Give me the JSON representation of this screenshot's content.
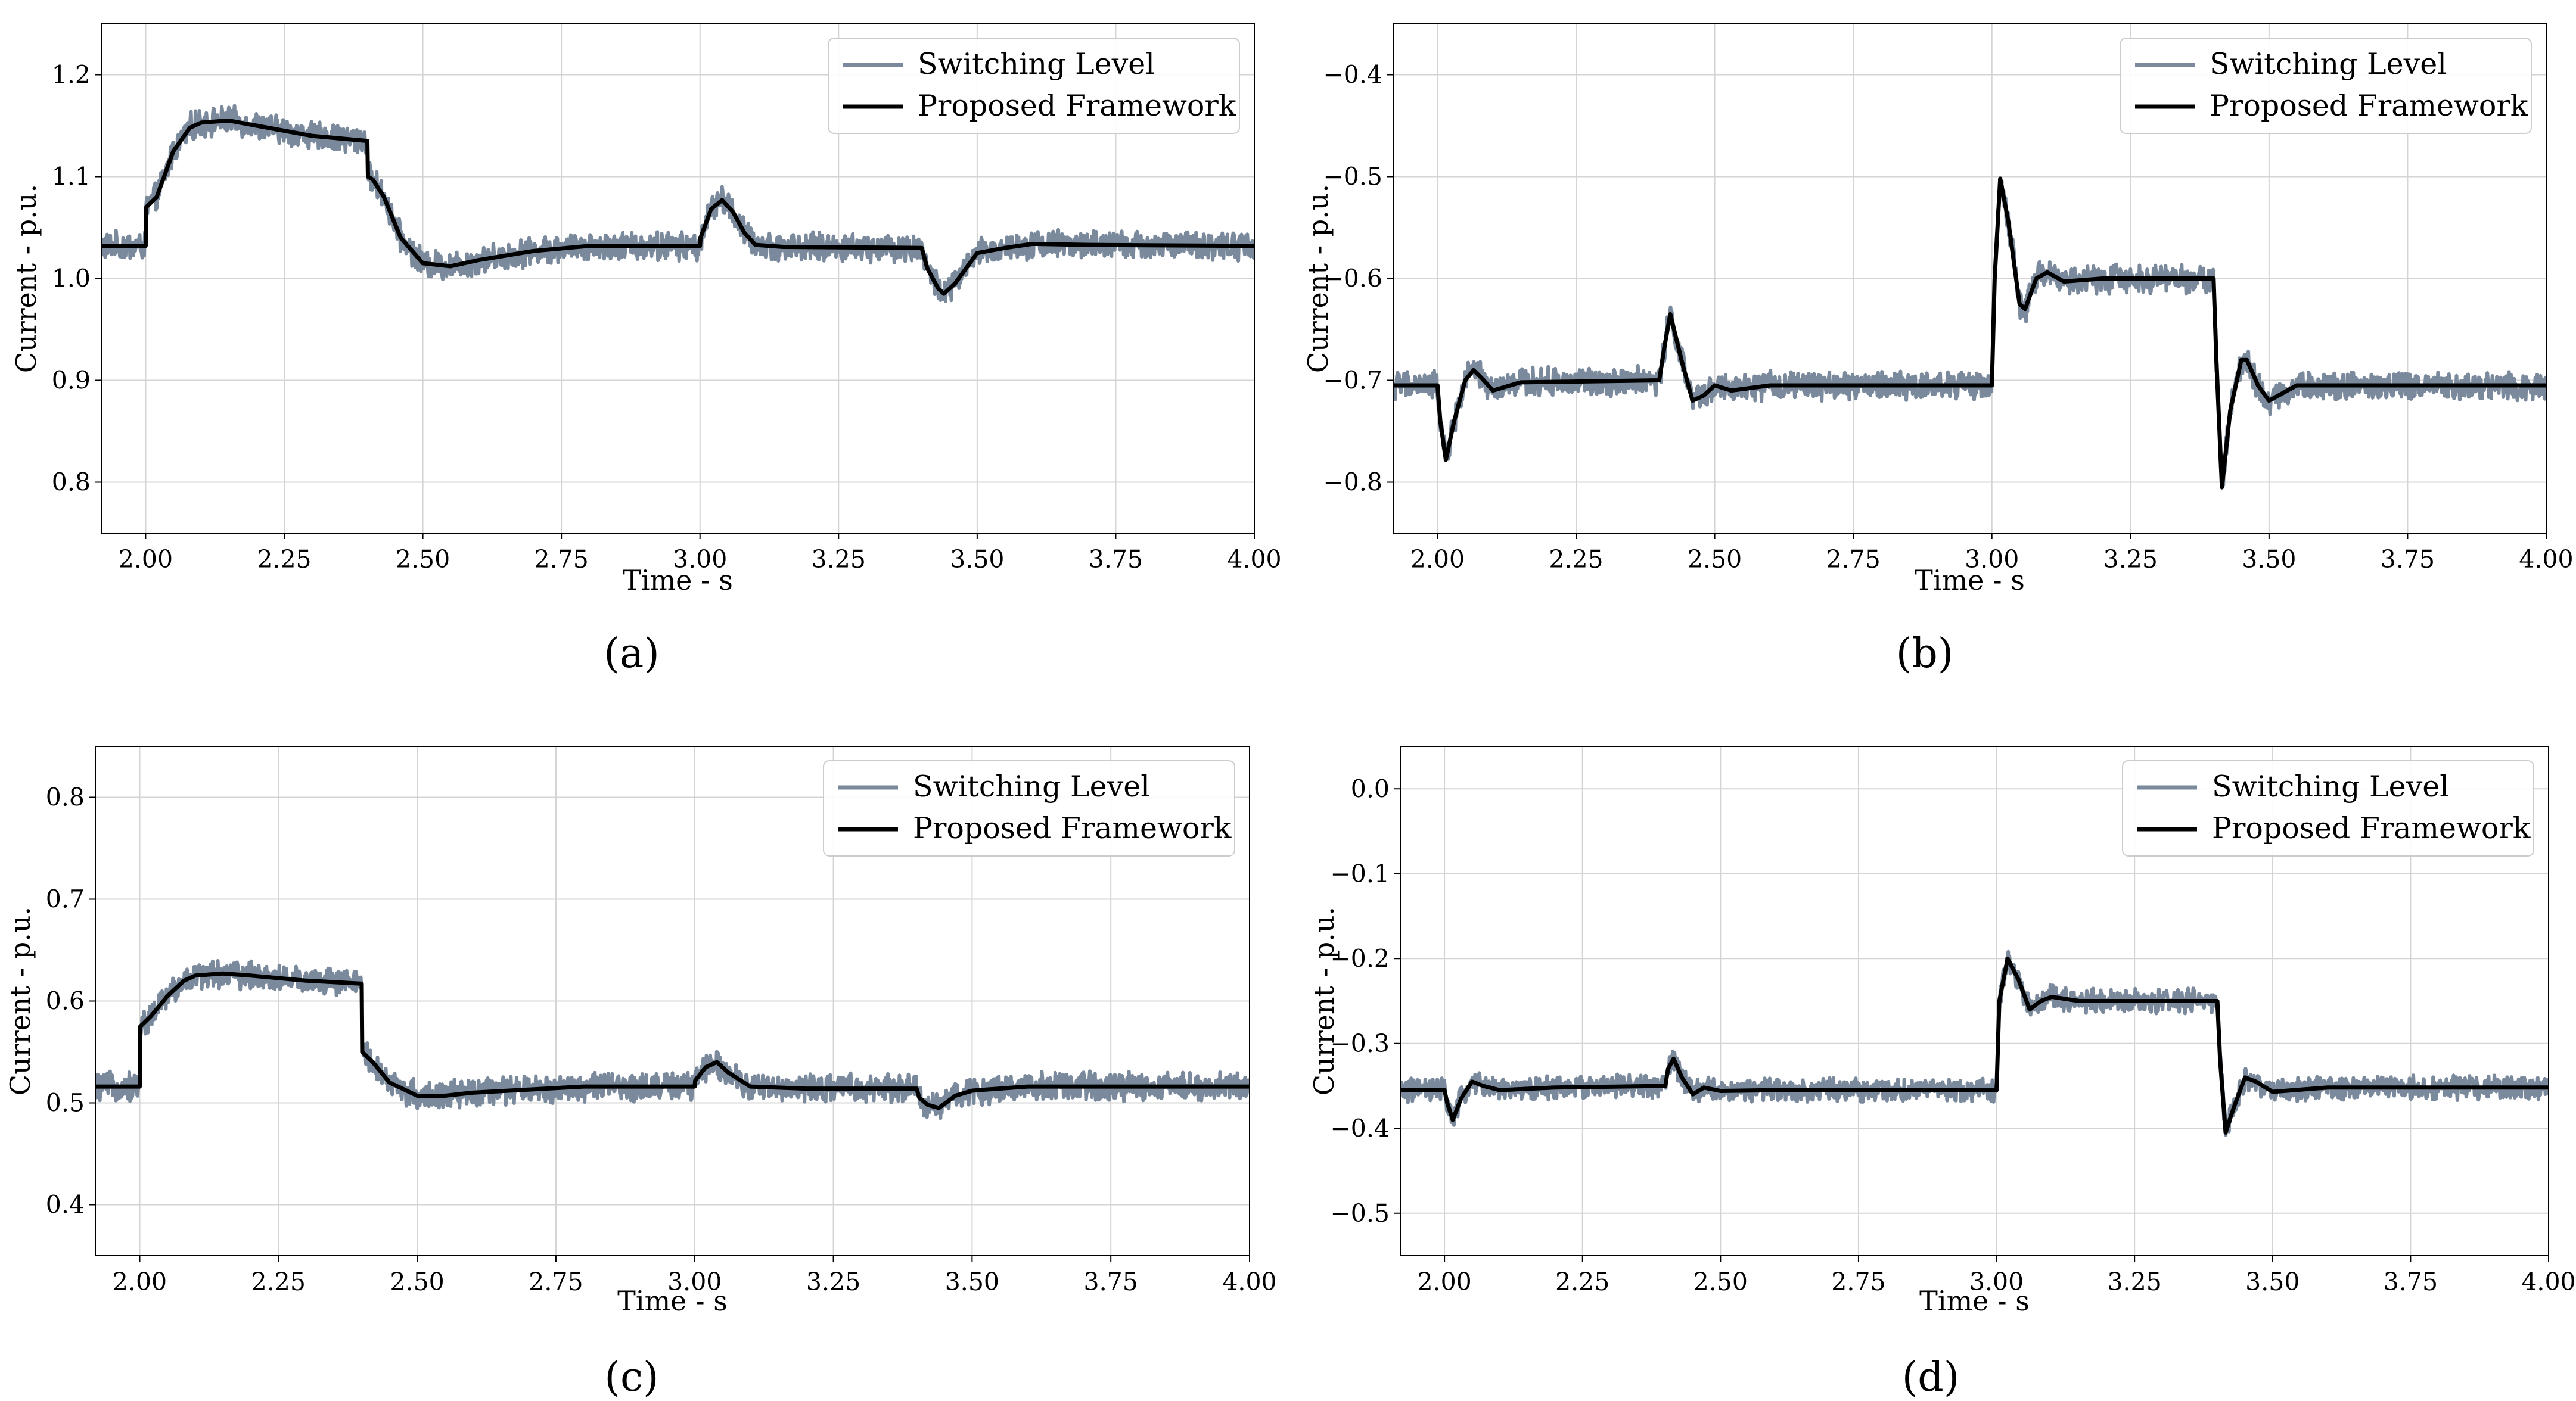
{
  "figure": {
    "captions": [
      "(a)",
      "(b)",
      "(c)",
      "(d)"
    ]
  },
  "colors": {
    "switching": "#7a8a9c",
    "framework": "#000000",
    "grid": "#d4d4d4",
    "frame": "#000000"
  },
  "chart_data": [
    {
      "type": "line",
      "panel": "a",
      "caption": "(a)",
      "xlabel": "Time - s",
      "ylabel": "Current - p.u.",
      "xlim": [
        1.92,
        4.0
      ],
      "ylim": [
        0.75,
        1.25
      ],
      "xticks": [
        2.0,
        2.25,
        2.5,
        2.75,
        3.0,
        3.25,
        3.5,
        3.75,
        4.0
      ],
      "xtick_labels": [
        "2.00",
        "2.25",
        "2.50",
        "2.75",
        "3.00",
        "3.25",
        "3.50",
        "3.75",
        "4.00"
      ],
      "yticks": [
        0.8,
        0.9,
        1.0,
        1.1,
        1.2
      ],
      "ytick_labels": [
        "0.8",
        "0.9",
        "1.0",
        "1.1",
        "1.2"
      ],
      "grid": true,
      "legend_position": "top-right",
      "noise_amplitude": 0.012,
      "series": [
        {
          "name": "Switching Level",
          "role": "switching"
        },
        {
          "name": "Proposed Framework",
          "role": "framework",
          "x": [
            1.92,
            2.0,
            2.001,
            2.02,
            2.05,
            2.08,
            2.1,
            2.15,
            2.2,
            2.3,
            2.4,
            2.401,
            2.41,
            2.43,
            2.46,
            2.5,
            2.55,
            2.6,
            2.7,
            2.8,
            3.0,
            3.001,
            3.02,
            3.04,
            3.06,
            3.08,
            3.1,
            3.15,
            3.4,
            3.41,
            3.43,
            3.44,
            3.46,
            3.5,
            3.55,
            3.6,
            3.7,
            4.0
          ],
          "y": [
            1.032,
            1.032,
            1.07,
            1.08,
            1.125,
            1.148,
            1.153,
            1.155,
            1.15,
            1.14,
            1.135,
            1.1,
            1.097,
            1.08,
            1.04,
            1.015,
            1.012,
            1.018,
            1.027,
            1.032,
            1.032,
            1.04,
            1.068,
            1.077,
            1.065,
            1.045,
            1.033,
            1.031,
            1.03,
            1.01,
            0.99,
            0.985,
            0.995,
            1.025,
            1.03,
            1.034,
            1.033,
            1.032
          ]
        }
      ]
    },
    {
      "type": "line",
      "panel": "b",
      "caption": "(b)",
      "xlabel": "Time - s",
      "ylabel": "Current - p.u.",
      "xlim": [
        1.92,
        4.0
      ],
      "ylim": [
        -0.85,
        -0.35
      ],
      "xticks": [
        2.0,
        2.25,
        2.5,
        2.75,
        3.0,
        3.25,
        3.5,
        3.75,
        4.0
      ],
      "xtick_labels": [
        "2.00",
        "2.25",
        "2.50",
        "2.75",
        "3.00",
        "3.25",
        "3.50",
        "3.75",
        "4.00"
      ],
      "yticks": [
        -0.8,
        -0.7,
        -0.6,
        -0.5,
        -0.4
      ],
      "ytick_labels": [
        "−0.8",
        "−0.7",
        "−0.6",
        "−0.5",
        "−0.4"
      ],
      "grid": true,
      "legend_position": "top-right",
      "noise_amplitude": 0.012,
      "series": [
        {
          "name": "Switching Level",
          "role": "switching"
        },
        {
          "name": "Proposed Framework",
          "role": "framework",
          "x": [
            1.92,
            2.0,
            2.005,
            2.015,
            2.03,
            2.05,
            2.065,
            2.08,
            2.1,
            2.15,
            2.4,
            2.41,
            2.42,
            2.44,
            2.46,
            2.48,
            2.5,
            2.53,
            2.6,
            3.0,
            3.005,
            3.015,
            3.03,
            3.05,
            3.06,
            3.08,
            3.1,
            3.13,
            3.2,
            3.4,
            3.405,
            3.415,
            3.43,
            3.45,
            3.46,
            3.48,
            3.5,
            3.55,
            4.0
          ],
          "y": [
            -0.705,
            -0.705,
            -0.74,
            -0.778,
            -0.74,
            -0.7,
            -0.69,
            -0.698,
            -0.71,
            -0.702,
            -0.7,
            -0.665,
            -0.635,
            -0.68,
            -0.72,
            -0.715,
            -0.705,
            -0.71,
            -0.705,
            -0.705,
            -0.6,
            -0.502,
            -0.545,
            -0.625,
            -0.63,
            -0.6,
            -0.594,
            -0.603,
            -0.6,
            -0.6,
            -0.68,
            -0.805,
            -0.73,
            -0.68,
            -0.68,
            -0.705,
            -0.72,
            -0.705,
            -0.705
          ]
        }
      ]
    },
    {
      "type": "line",
      "panel": "c",
      "caption": "(c)",
      "xlabel": "Time - s",
      "ylabel": "Current - p.u.",
      "xlim": [
        1.92,
        4.0
      ],
      "ylim": [
        0.35,
        0.85
      ],
      "xticks": [
        2.0,
        2.25,
        2.5,
        2.75,
        3.0,
        3.25,
        3.5,
        3.75,
        4.0
      ],
      "xtick_labels": [
        "2.00",
        "2.25",
        "2.50",
        "2.75",
        "3.00",
        "3.25",
        "3.50",
        "3.75",
        "4.00"
      ],
      "yticks": [
        0.4,
        0.5,
        0.6,
        0.7,
        0.8
      ],
      "ytick_labels": [
        "0.4",
        "0.5",
        "0.6",
        "0.7",
        "0.8"
      ],
      "grid": true,
      "legend_position": "top-right",
      "noise_amplitude": 0.012,
      "series": [
        {
          "name": "Switching Level",
          "role": "switching"
        },
        {
          "name": "Proposed Framework",
          "role": "framework",
          "x": [
            1.92,
            2.0,
            2.001,
            2.02,
            2.05,
            2.08,
            2.1,
            2.15,
            2.2,
            2.3,
            2.4,
            2.401,
            2.42,
            2.45,
            2.5,
            2.55,
            2.6,
            2.7,
            2.8,
            3.0,
            3.001,
            3.02,
            3.04,
            3.06,
            3.1,
            3.2,
            3.4,
            3.405,
            3.42,
            3.44,
            3.47,
            3.5,
            3.6,
            4.0
          ],
          "y": [
            0.516,
            0.516,
            0.575,
            0.585,
            0.605,
            0.62,
            0.625,
            0.627,
            0.625,
            0.62,
            0.617,
            0.55,
            0.54,
            0.52,
            0.507,
            0.507,
            0.51,
            0.513,
            0.516,
            0.516,
            0.522,
            0.535,
            0.54,
            0.53,
            0.516,
            0.514,
            0.514,
            0.505,
            0.498,
            0.495,
            0.507,
            0.512,
            0.516,
            0.516
          ]
        }
      ]
    },
    {
      "type": "line",
      "panel": "d",
      "caption": "(d)",
      "xlabel": "Time - s",
      "ylabel": "Current - p.u.",
      "xlim": [
        1.92,
        4.0
      ],
      "ylim": [
        -0.55,
        0.05
      ],
      "xticks": [
        2.0,
        2.25,
        2.5,
        2.75,
        3.0,
        3.25,
        3.5,
        3.75,
        4.0
      ],
      "xtick_labels": [
        "2.00",
        "2.25",
        "2.50",
        "2.75",
        "3.00",
        "3.25",
        "3.50",
        "3.75",
        "4.00"
      ],
      "yticks": [
        -0.5,
        -0.4,
        -0.3,
        -0.2,
        -0.1,
        0.0
      ],
      "ytick_labels": [
        "−0.5",
        "−0.4",
        "−0.3",
        "−0.2",
        "−0.1",
        "0.0"
      ],
      "grid": true,
      "legend_position": "top-right",
      "noise_amplitude": 0.012,
      "series": [
        {
          "name": "Switching Level",
          "role": "switching"
        },
        {
          "name": "Proposed Framework",
          "role": "framework",
          "x": [
            1.92,
            2.0,
            2.005,
            2.015,
            2.03,
            2.05,
            2.07,
            2.1,
            2.2,
            2.4,
            2.405,
            2.415,
            2.43,
            2.45,
            2.47,
            2.5,
            2.6,
            3.0,
            3.005,
            3.02,
            3.04,
            3.06,
            3.08,
            3.1,
            3.15,
            3.2,
            3.4,
            3.405,
            3.415,
            3.43,
            3.45,
            3.47,
            3.5,
            3.6,
            4.0
          ],
          "y": [
            -0.355,
            -0.355,
            -0.37,
            -0.39,
            -0.365,
            -0.345,
            -0.35,
            -0.355,
            -0.352,
            -0.35,
            -0.33,
            -0.318,
            -0.34,
            -0.36,
            -0.352,
            -0.356,
            -0.355,
            -0.355,
            -0.25,
            -0.2,
            -0.225,
            -0.26,
            -0.25,
            -0.245,
            -0.25,
            -0.25,
            -0.25,
            -0.32,
            -0.405,
            -0.375,
            -0.34,
            -0.345,
            -0.357,
            -0.352,
            -0.352
          ]
        }
      ]
    }
  ]
}
